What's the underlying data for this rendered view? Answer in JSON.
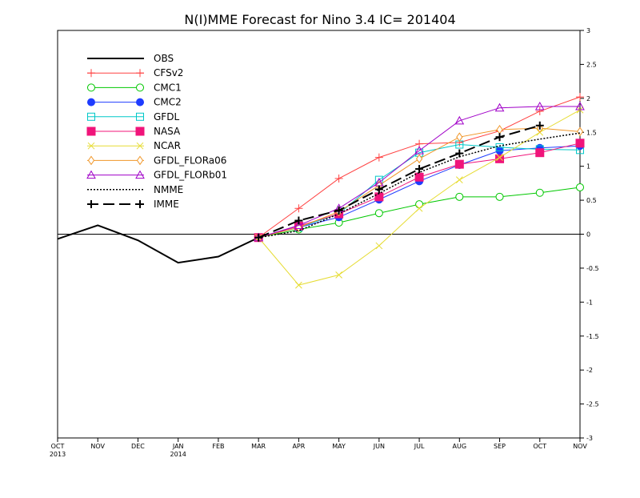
{
  "chart_data": {
    "type": "line",
    "title": "N(I)MME Forecast for Nino 3.4   IC= 201404",
    "x_categories": [
      "OCT",
      "NOV",
      "DEC",
      "JAN",
      "FEB",
      "MAR",
      "APR",
      "MAY",
      "JUN",
      "JUL",
      "AUG",
      "SEP",
      "OCT",
      "NOV"
    ],
    "x_years": [
      "2013",
      "",
      "",
      "2014",
      "",
      "",
      "",
      "",
      "",
      "",
      "",
      "",
      "",
      ""
    ],
    "y_axis_side": "right",
    "ylim": [
      -3,
      3
    ],
    "y_ticks": [
      -3,
      -2.5,
      -2,
      -1.5,
      -1,
      -0.5,
      0,
      0.5,
      1,
      1.5,
      2,
      2.5,
      3
    ],
    "zero_line": true,
    "legend_position": "top-left",
    "series": [
      {
        "name": "OBS",
        "color": "#000000",
        "marker": "none",
        "dash": "solid",
        "width": 2,
        "x": [
          0,
          1,
          2,
          3,
          4,
          5
        ],
        "values": [
          -0.07,
          0.13,
          -0.09,
          -0.42,
          -0.33,
          -0.05
        ]
      },
      {
        "name": "CFSv2",
        "color": "#ff4040",
        "marker": "plus",
        "dash": "solid",
        "width": 1,
        "x": [
          5,
          6,
          7,
          8,
          9,
          10,
          11,
          12,
          13
        ],
        "values": [
          -0.05,
          0.38,
          0.82,
          1.13,
          1.33,
          1.35,
          1.52,
          1.81,
          2.02
        ]
      },
      {
        "name": "CMC1",
        "color": "#00c800",
        "marker": "circle-open",
        "dash": "solid",
        "width": 1,
        "x": [
          5,
          6,
          7,
          8,
          9,
          10,
          11,
          12,
          13
        ],
        "values": [
          -0.05,
          0.07,
          0.17,
          0.31,
          0.44,
          0.55,
          0.55,
          0.61,
          0.69
        ]
      },
      {
        "name": "CMC2",
        "color": "#1e3cff",
        "marker": "circle-filled",
        "dash": "solid",
        "width": 1,
        "x": [
          5,
          6,
          7,
          8,
          9,
          10,
          11,
          12,
          13
        ],
        "values": [
          -0.05,
          0.1,
          0.25,
          0.51,
          0.78,
          1.02,
          1.23,
          1.27,
          1.3
        ]
      },
      {
        "name": "GFDL",
        "color": "#00c8c8",
        "marker": "square-open",
        "dash": "solid",
        "width": 1,
        "x": [
          5,
          6,
          7,
          8,
          9,
          10,
          11,
          12,
          13
        ],
        "values": [
          -0.05,
          0.1,
          0.3,
          0.8,
          1.2,
          1.32,
          1.28,
          1.25,
          1.24
        ]
      },
      {
        "name": "NASA",
        "color": "#f0147a",
        "marker": "square-filled",
        "dash": "solid",
        "width": 1,
        "x": [
          5,
          6,
          7,
          8,
          9,
          10,
          11,
          12,
          13
        ],
        "values": [
          -0.05,
          0.12,
          0.3,
          0.55,
          0.84,
          1.03,
          1.11,
          1.2,
          1.34
        ]
      },
      {
        "name": "NCAR",
        "color": "#e6dc32",
        "marker": "x",
        "dash": "solid",
        "width": 1,
        "x": [
          5,
          6,
          7,
          8,
          9,
          10,
          11,
          12,
          13
        ],
        "values": [
          -0.05,
          -0.75,
          -0.6,
          -0.17,
          0.38,
          0.8,
          1.13,
          1.5,
          1.83
        ]
      },
      {
        "name": "GFDL_FLORa06",
        "color": "#f09628",
        "marker": "diamond-open",
        "dash": "solid",
        "width": 1,
        "x": [
          5,
          6,
          7,
          8,
          9,
          10,
          11,
          12,
          13
        ],
        "values": [
          -0.05,
          0.1,
          0.33,
          0.72,
          1.11,
          1.43,
          1.54,
          1.56,
          1.51
        ]
      },
      {
        "name": "GFDL_FLORb01",
        "color": "#a000c8",
        "marker": "triangle-open",
        "dash": "solid",
        "width": 1,
        "x": [
          5,
          6,
          7,
          8,
          9,
          10,
          11,
          12,
          13
        ],
        "values": [
          -0.05,
          0.13,
          0.38,
          0.76,
          1.23,
          1.67,
          1.86,
          1.88,
          1.88
        ]
      },
      {
        "name": "NMME",
        "color": "#000000",
        "marker": "none",
        "dash": "dotted",
        "width": 1.5,
        "x": [
          5,
          6,
          7,
          8,
          9,
          10,
          11,
          12,
          13
        ],
        "values": [
          -0.05,
          0.05,
          0.3,
          0.6,
          0.91,
          1.14,
          1.3,
          1.4,
          1.49
        ]
      },
      {
        "name": "IMME",
        "color": "#000000",
        "marker": "plus",
        "dash": "long-dash",
        "width": 2,
        "x": [
          5,
          6,
          7,
          8,
          9,
          10,
          11,
          12
        ],
        "values": [
          -0.05,
          0.2,
          0.35,
          0.66,
          0.96,
          1.19,
          1.43,
          1.6
        ]
      }
    ]
  }
}
